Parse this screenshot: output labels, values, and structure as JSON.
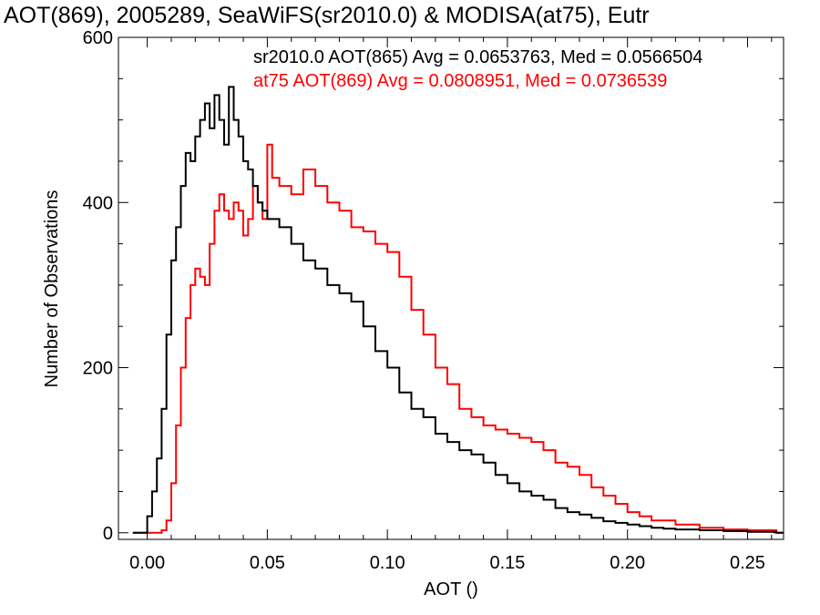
{
  "chart_data": {
    "type": "line",
    "title": "AOT(869), 2005289, SeaWiFS(sr2010.0) & MODISA(at75), Eutr",
    "xlabel": "AOT ()",
    "ylabel": "Number of Observations",
    "xlim": [
      -0.012,
      0.265
    ],
    "ylim": [
      -8,
      600
    ],
    "xticks": [
      0.0,
      0.05,
      0.1,
      0.15,
      0.2,
      0.25
    ],
    "xtick_labels": [
      "0.00",
      "0.05",
      "0.10",
      "0.15",
      "0.20",
      "0.25"
    ],
    "yticks": [
      0,
      200,
      400,
      600
    ],
    "ytick_labels": [
      "0",
      "200",
      "400",
      "600"
    ],
    "grid": false,
    "step": true,
    "annotations": [
      {
        "text": "sr2010.0 AOT(865) Avg = 0.0653763, Med = 0.0566504",
        "color": "#000000"
      },
      {
        "text": "at75 AOT(869) Avg = 0.0808951, Med = 0.0736539",
        "color": "#ff0000"
      }
    ],
    "series": [
      {
        "color": "#000000",
        "x": [
          -0.006,
          -0.001,
          0.0,
          0.002,
          0.004,
          0.006,
          0.008,
          0.01,
          0.012,
          0.014,
          0.016,
          0.018,
          0.02,
          0.022,
          0.024,
          0.026,
          0.028,
          0.03,
          0.032,
          0.034,
          0.036,
          0.038,
          0.04,
          0.042,
          0.044,
          0.046,
          0.048,
          0.05,
          0.055,
          0.06,
          0.065,
          0.07,
          0.075,
          0.08,
          0.085,
          0.09,
          0.095,
          0.1,
          0.105,
          0.11,
          0.115,
          0.12,
          0.125,
          0.13,
          0.135,
          0.14,
          0.145,
          0.15,
          0.155,
          0.16,
          0.165,
          0.17,
          0.175,
          0.18,
          0.185,
          0.19,
          0.195,
          0.2,
          0.205,
          0.21,
          0.215,
          0.22,
          0.23,
          0.24,
          0.25,
          0.262
        ],
        "y": [
          0,
          0,
          20,
          50,
          90,
          150,
          240,
          330,
          370,
          420,
          460,
          450,
          480,
          500,
          520,
          490,
          530,
          500,
          470,
          540,
          500,
          480,
          450,
          440,
          420,
          400,
          390,
          380,
          370,
          350,
          330,
          320,
          300,
          290,
          280,
          250,
          220,
          200,
          170,
          150,
          140,
          120,
          110,
          100,
          95,
          85,
          70,
          60,
          50,
          45,
          40,
          30,
          25,
          22,
          18,
          14,
          12,
          10,
          8,
          6,
          5,
          4,
          3,
          2,
          1,
          0
        ]
      },
      {
        "color": "#ff0000",
        "x": [
          -0.006,
          0.004,
          0.006,
          0.008,
          0.01,
          0.012,
          0.014,
          0.016,
          0.018,
          0.02,
          0.022,
          0.024,
          0.026,
          0.028,
          0.03,
          0.032,
          0.034,
          0.036,
          0.038,
          0.04,
          0.042,
          0.044,
          0.046,
          0.048,
          0.05,
          0.052,
          0.055,
          0.06,
          0.065,
          0.07,
          0.075,
          0.08,
          0.085,
          0.09,
          0.095,
          0.1,
          0.105,
          0.11,
          0.115,
          0.12,
          0.125,
          0.13,
          0.135,
          0.14,
          0.145,
          0.15,
          0.155,
          0.16,
          0.165,
          0.17,
          0.175,
          0.18,
          0.185,
          0.19,
          0.195,
          0.2,
          0.205,
          0.21,
          0.22,
          0.23,
          0.24,
          0.25,
          0.262
        ],
        "y": [
          0,
          0,
          3,
          15,
          60,
          130,
          200,
          260,
          300,
          320,
          310,
          300,
          350,
          390,
          410,
          390,
          380,
          400,
          390,
          360,
          380,
          420,
          400,
          380,
          470,
          430,
          420,
          410,
          440,
          420,
          400,
          390,
          370,
          365,
          350,
          340,
          310,
          270,
          240,
          200,
          180,
          150,
          140,
          130,
          125,
          120,
          115,
          110,
          100,
          85,
          80,
          70,
          55,
          45,
          35,
          25,
          20,
          15,
          10,
          6,
          4,
          3,
          0
        ]
      }
    ]
  }
}
